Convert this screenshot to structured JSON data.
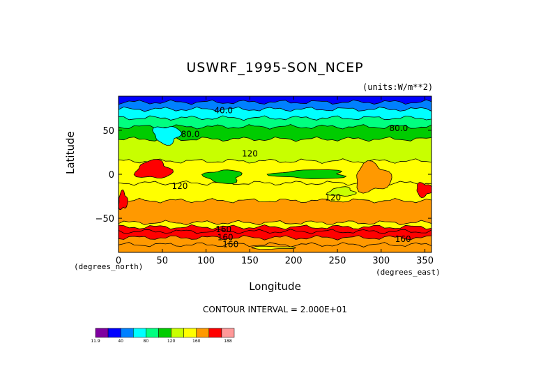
{
  "chart_data": {
    "type": "heatmap",
    "title": "USWRF_1995-SON_NCEP",
    "units_label": "(units:W/m**2)",
    "xlabel": "Longitude",
    "ylabel": "Latitude",
    "x_units_left": "(degrees_north)",
    "x_units_right": "(degrees_east)",
    "xlim": [
      0,
      357.5
    ],
    "ylim": [
      -88.75,
      88.75
    ],
    "x_ticks": [
      0,
      50,
      100,
      150,
      200,
      250,
      300,
      350
    ],
    "y_ticks": [
      50,
      0,
      -50
    ],
    "y_tick_labels": [
      "50",
      "0",
      "−50"
    ],
    "contour_interval_text": "CONTOUR INTERVAL = 2.000E+01",
    "colorbar": {
      "levels": [
        11.9,
        20,
        40,
        60,
        80,
        100,
        120,
        140,
        160,
        180,
        188
      ],
      "labels": [
        "11.9",
        "40",
        "80",
        "120",
        "160",
        "188"
      ],
      "colors": [
        "#7f00a0",
        "#0000ff",
        "#0080ff",
        "#00ffff",
        "#00ff80",
        "#00cc00",
        "#c8ff00",
        "#ffff00",
        "#ff9900",
        "#ff0000",
        "#ff9999"
      ]
    },
    "zonal_bands": [
      {
        "lat_top": 88.75,
        "lat_bottom": 82,
        "value": 20
      },
      {
        "lat_top": 82,
        "lat_bottom": 74,
        "value": 40
      },
      {
        "lat_top": 74,
        "lat_bottom": 64,
        "value": 60
      },
      {
        "lat_top": 64,
        "lat_bottom": 54,
        "value": 80
      },
      {
        "lat_top": 54,
        "lat_bottom": 40,
        "value": 100
      },
      {
        "lat_top": 40,
        "lat_bottom": 15,
        "value": 120
      },
      {
        "lat_top": 15,
        "lat_bottom": -10,
        "value": 140
      },
      {
        "lat_top": -10,
        "lat_bottom": -30,
        "value": 140
      },
      {
        "lat_top": -30,
        "lat_bottom": -55,
        "value": 160
      },
      {
        "lat_top": -55,
        "lat_bottom": -60,
        "value": 140
      },
      {
        "lat_top": -60,
        "lat_bottom": -65,
        "value": 180
      },
      {
        "lat_top": -65,
        "lat_bottom": -72,
        "value": 185
      },
      {
        "lat_top": -72,
        "lat_bottom": -80,
        "value": 170
      },
      {
        "lat_top": -80,
        "lat_bottom": -88.75,
        "value": 160
      }
    ],
    "regions": [
      {
        "lon": [
          20,
          60
        ],
        "lat": [
          -5,
          15
        ],
        "value": 180
      },
      {
        "lon": [
          270,
          310
        ],
        "lat": [
          -20,
          12
        ],
        "value": 175
      },
      {
        "lon": [
          340,
          357.5
        ],
        "lat": [
          -25,
          -10
        ],
        "value": 180
      },
      {
        "lon": [
          40,
          70
        ],
        "lat": [
          35,
          55
        ],
        "value": 60
      },
      {
        "lon": [
          100,
          140
        ],
        "lat": [
          -10,
          5
        ],
        "value": 110
      },
      {
        "lon": [
          180,
          260
        ],
        "lat": [
          -5,
          5
        ],
        "value": 110
      },
      {
        "lon": [
          240,
          270
        ],
        "lat": [
          -25,
          -15
        ],
        "value": 120
      },
      {
        "lon": [
          0,
          10
        ],
        "lat": [
          -40,
          -20
        ],
        "value": 180
      },
      {
        "lon": [
          150,
          200
        ],
        "lat": [
          -85,
          -82
        ],
        "value": 150
      }
    ],
    "contour_labels": [
      {
        "text": "40.0",
        "lon": 120,
        "lat": 72
      },
      {
        "text": "80.0",
        "lon": 82,
        "lat": 45
      },
      {
        "text": "80.0",
        "lon": 320,
        "lat": 52
      },
      {
        "text": "120",
        "lon": 150,
        "lat": 23
      },
      {
        "text": "120",
        "lon": 70,
        "lat": -14
      },
      {
        "text": "120",
        "lon": 245,
        "lat": -27
      },
      {
        "text": "160",
        "lon": 120,
        "lat": -63
      },
      {
        "text": "160",
        "lon": 122,
        "lat": -72
      },
      {
        "text": "160",
        "lon": 325,
        "lat": -74
      },
      {
        "text": "160",
        "lon": 128,
        "lat": -80
      }
    ]
  }
}
